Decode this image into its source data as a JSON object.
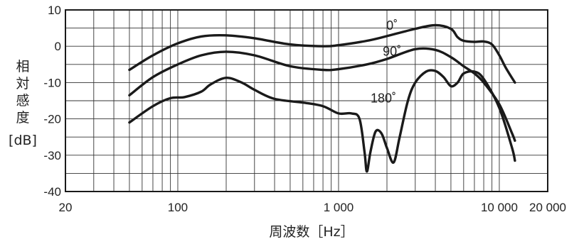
{
  "chart_data": {
    "type": "line",
    "xscale": "log",
    "xlim": [
      20,
      20000
    ],
    "ylim": [
      -40,
      10
    ],
    "yticks": [
      10,
      0,
      -10,
      -20,
      -30,
      -40
    ],
    "ytick_labels": [
      "10",
      "0",
      "-10",
      "-20",
      "-30",
      "-40"
    ],
    "xticks": [
      20,
      100,
      1000,
      10000,
      20000
    ],
    "xtick_labels": [
      "20",
      "100",
      "1 000",
      "10 000",
      "20 000"
    ],
    "xlabel": "周波数［Hz］",
    "ylabel": "相対感度",
    "yunit": "[dB]",
    "grid": true,
    "series": [
      {
        "name": "0˚",
        "label_at": [
          2150,
          4.5
        ],
        "points": [
          [
            50,
            -6.5
          ],
          [
            70,
            -2.5
          ],
          [
            100,
            0.8
          ],
          [
            140,
            2.7
          ],
          [
            200,
            3.0
          ],
          [
            300,
            2.2
          ],
          [
            500,
            0.5
          ],
          [
            800,
            0
          ],
          [
            1000,
            0.3
          ],
          [
            1500,
            1.5
          ],
          [
            2000,
            2.8
          ],
          [
            3000,
            4.8
          ],
          [
            4000,
            5.8
          ],
          [
            5000,
            4.8
          ],
          [
            5500,
            2.5
          ],
          [
            6000,
            1.5
          ],
          [
            7000,
            1.2
          ],
          [
            8000,
            1.3
          ],
          [
            9000,
            0.5
          ],
          [
            10000,
            -2.5
          ],
          [
            11000,
            -6
          ],
          [
            12500,
            -10
          ]
        ]
      },
      {
        "name": "90˚",
        "label_at": [
          2150,
          -2.6
        ],
        "points": [
          [
            50,
            -13.5
          ],
          [
            70,
            -8.5
          ],
          [
            100,
            -5
          ],
          [
            140,
            -2.5
          ],
          [
            200,
            -1.5
          ],
          [
            300,
            -2.5
          ],
          [
            500,
            -5.5
          ],
          [
            800,
            -6.5
          ],
          [
            1000,
            -6.3
          ],
          [
            1500,
            -5
          ],
          [
            2000,
            -3.5
          ],
          [
            3000,
            -0.8
          ],
          [
            4000,
            -1
          ],
          [
            5000,
            -3
          ],
          [
            6000,
            -5.5
          ],
          [
            7000,
            -7.5
          ],
          [
            8000,
            -10
          ],
          [
            10000,
            -16
          ],
          [
            12000,
            -24
          ],
          [
            12500,
            -26
          ]
        ]
      },
      {
        "name": "180˚",
        "label_at": [
          1900,
          -15.5
        ],
        "points": [
          [
            50,
            -21
          ],
          [
            70,
            -16.5
          ],
          [
            90,
            -14.3
          ],
          [
            110,
            -14
          ],
          [
            140,
            -12.5
          ],
          [
            160,
            -10.5
          ],
          [
            200,
            -8.7
          ],
          [
            250,
            -10
          ],
          [
            300,
            -12
          ],
          [
            400,
            -14.5
          ],
          [
            600,
            -15.5
          ],
          [
            800,
            -16.5
          ],
          [
            1000,
            -18.5
          ],
          [
            1200,
            -18.5
          ],
          [
            1350,
            -20
          ],
          [
            1450,
            -29
          ],
          [
            1500,
            -34.5
          ],
          [
            1580,
            -29
          ],
          [
            1700,
            -23.5
          ],
          [
            1850,
            -24
          ],
          [
            2000,
            -28
          ],
          [
            2200,
            -32
          ],
          [
            2400,
            -25
          ],
          [
            2700,
            -15
          ],
          [
            3000,
            -10
          ],
          [
            3500,
            -7
          ],
          [
            4000,
            -6.8
          ],
          [
            4500,
            -8.5
          ],
          [
            5000,
            -11
          ],
          [
            5500,
            -10
          ],
          [
            6000,
            -7.5
          ],
          [
            7000,
            -7
          ],
          [
            8000,
            -9
          ],
          [
            10000,
            -17
          ],
          [
            12000,
            -28
          ],
          [
            12500,
            -31.5
          ]
        ]
      }
    ]
  }
}
